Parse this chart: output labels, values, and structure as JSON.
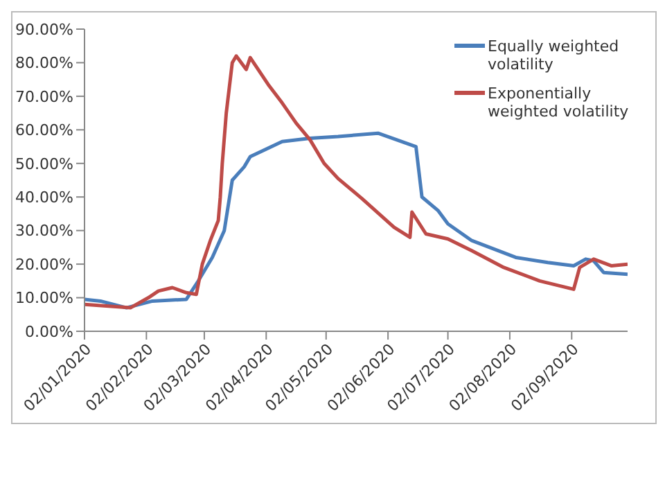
{
  "chart_data": {
    "type": "line",
    "xlim": [
      "2020-01-02",
      "2020-09-30"
    ],
    "xticks": [
      {
        "value": "2020-01-02",
        "label": "02/01/2020"
      },
      {
        "value": "2020-02-02",
        "label": "02/02/2020"
      },
      {
        "value": "2020-03-02",
        "label": "02/03/2020"
      },
      {
        "value": "2020-04-02",
        "label": "02/04/2020"
      },
      {
        "value": "2020-05-02",
        "label": "02/05/2020"
      },
      {
        "value": "2020-06-02",
        "label": "02/06/2020"
      },
      {
        "value": "2020-07-02",
        "label": "02/07/2020"
      },
      {
        "value": "2020-08-02",
        "label": "02/08/2020"
      },
      {
        "value": "2020-09-02",
        "label": "02/09/2020"
      }
    ],
    "ylim": [
      0,
      90
    ],
    "yticks": [
      {
        "value": 0,
        "label": "0.00%"
      },
      {
        "value": 10,
        "label": "10.00%"
      },
      {
        "value": 20,
        "label": "20.00%"
      },
      {
        "value": 30,
        "label": "30.00%"
      },
      {
        "value": 40,
        "label": "40.00%"
      },
      {
        "value": 50,
        "label": "50.00%"
      },
      {
        "value": 60,
        "label": "60.00%"
      },
      {
        "value": 70,
        "label": "70.00%"
      },
      {
        "value": 80,
        "label": "80.00%"
      },
      {
        "value": 90,
        "label": "90.00%"
      }
    ],
    "grid": false,
    "legend": "top right",
    "marker": "none",
    "line_style": "solid",
    "series": [
      {
        "name": "Equally weighted volatility",
        "color": "#4a7ebb",
        "x": [
          "2020-01-02",
          "2020-01-10",
          "2020-01-23",
          "2020-02-05",
          "2020-02-22",
          "2020-02-28",
          "2020-03-06",
          "2020-03-12",
          "2020-03-16",
          "2020-03-22",
          "2020-03-25",
          "2020-04-01",
          "2020-04-10",
          "2020-04-24",
          "2020-05-08",
          "2020-05-28",
          "2020-06-16",
          "2020-06-19",
          "2020-06-27",
          "2020-07-02",
          "2020-07-14",
          "2020-08-05",
          "2020-08-21",
          "2020-09-03",
          "2020-09-09",
          "2020-09-13",
          "2020-09-18",
          "2020-09-30"
        ],
        "values": [
          9.5,
          9,
          7,
          9,
          9.5,
          15,
          22,
          30,
          45,
          49,
          52,
          54,
          56.5,
          57.5,
          58,
          59,
          55,
          40,
          36,
          32,
          27,
          22,
          20.5,
          19.5,
          21.5,
          21,
          17.5,
          17
        ]
      },
      {
        "name": "Exponentially weighted volatility",
        "color": "#be4b48",
        "x": [
          "2020-01-02",
          "2020-01-25",
          "2020-02-03",
          "2020-02-08",
          "2020-02-15",
          "2020-02-22",
          "2020-02-27",
          "2020-03-01",
          "2020-03-05",
          "2020-03-09",
          "2020-03-10",
          "2020-03-11",
          "2020-03-13",
          "2020-03-16",
          "2020-03-18",
          "2020-03-23",
          "2020-03-25",
          "2020-04-03",
          "2020-04-10",
          "2020-04-17",
          "2020-04-24",
          "2020-05-01",
          "2020-05-08",
          "2020-05-20",
          "2020-06-05",
          "2020-06-13",
          "2020-06-14",
          "2020-06-21",
          "2020-07-02",
          "2020-07-14",
          "2020-07-30",
          "2020-08-17",
          "2020-09-03",
          "2020-09-06",
          "2020-09-13",
          "2020-09-22",
          "2020-09-30"
        ],
        "values": [
          8,
          7,
          10,
          12,
          13,
          11.5,
          11,
          20,
          27,
          33,
          40,
          50,
          65,
          80,
          82,
          78,
          81.5,
          73.5,
          68,
          62,
          57,
          50,
          45.5,
          39.5,
          31,
          28,
          35.5,
          29,
          27.5,
          24,
          19,
          15,
          12.5,
          19,
          21.5,
          19.5,
          20
        ]
      }
    ]
  }
}
